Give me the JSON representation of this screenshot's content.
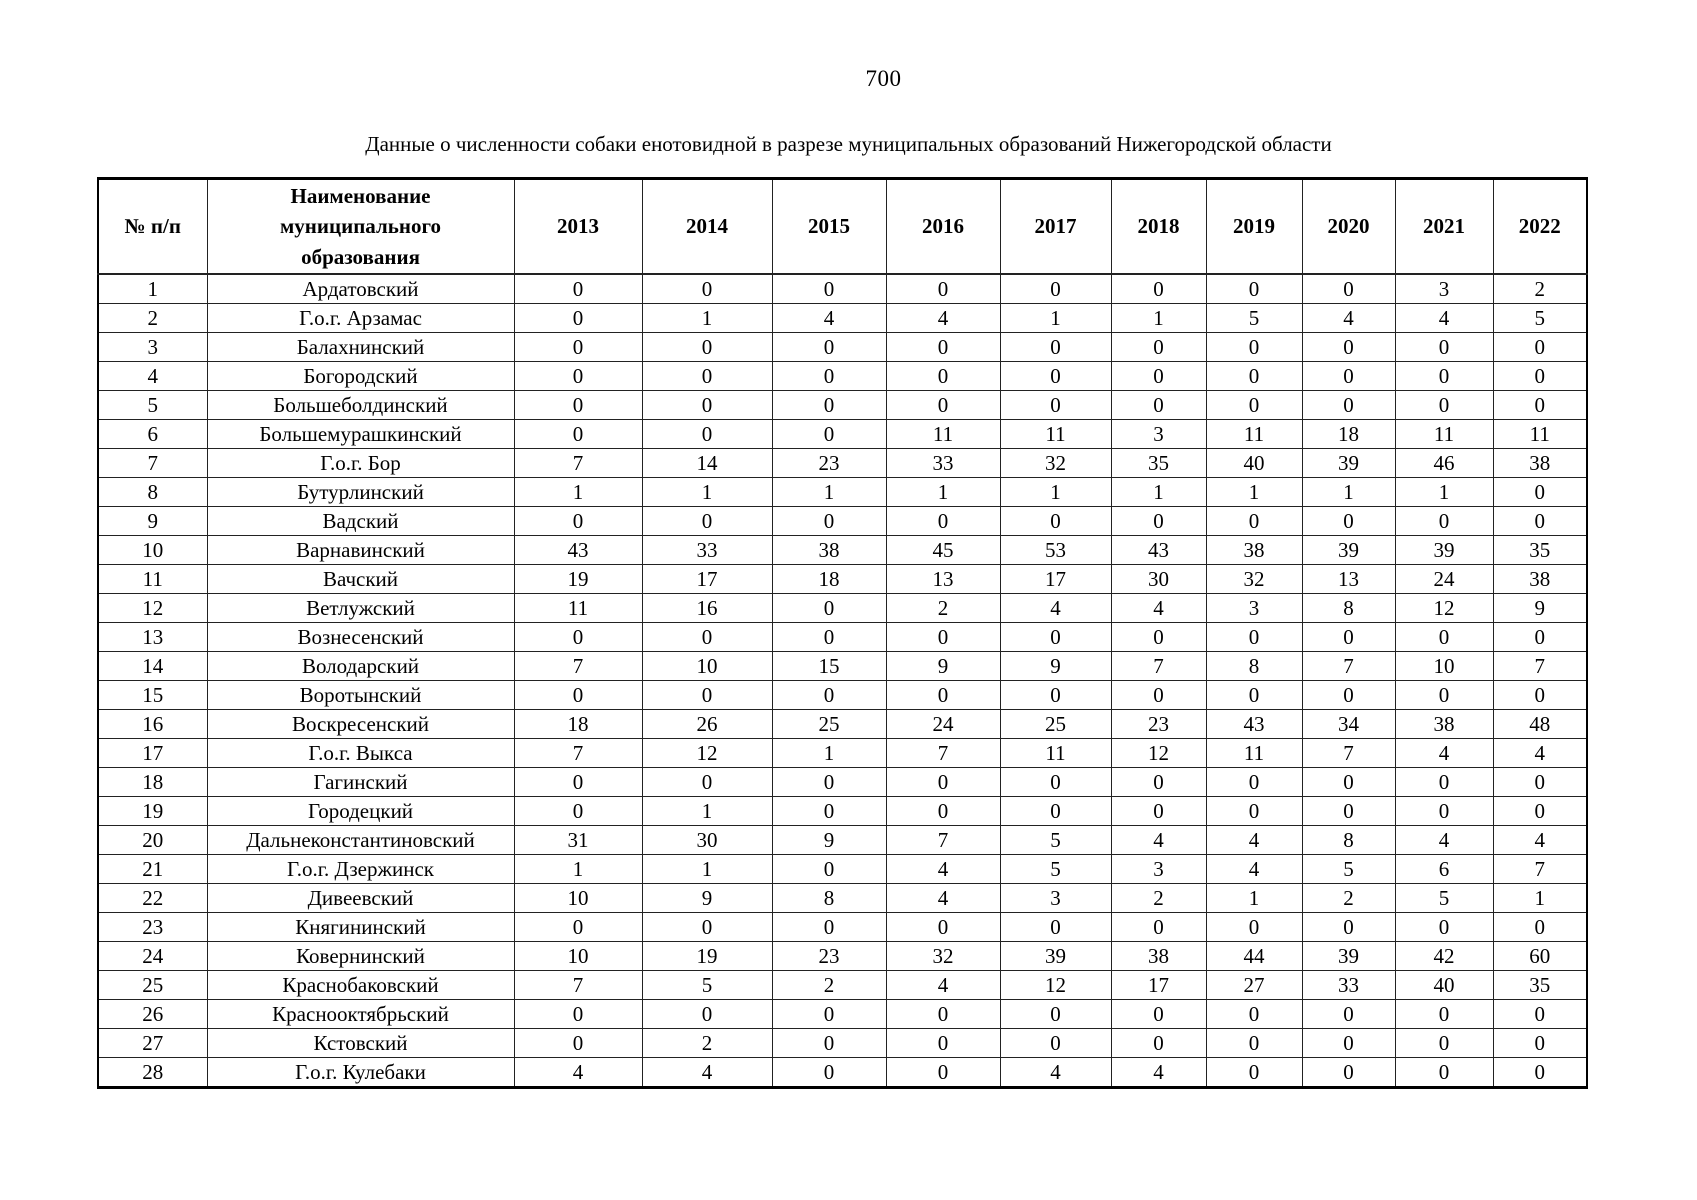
{
  "page": {
    "number": "700",
    "title": "Данные о численности собаки енотовидной в разрезе муниципальных образований Нижегородской области"
  },
  "table": {
    "header": {
      "num": "№ п/п",
      "name": "Наименование муниципального образования",
      "name_lines": [
        "Наименование",
        "муниципального",
        "образования"
      ],
      "years": [
        "2013",
        "2014",
        "2015",
        "2016",
        "2017",
        "2018",
        "2019",
        "2020",
        "2021",
        "2022"
      ]
    },
    "rows": [
      {
        "num": "1",
        "name": "Ардатовский",
        "values": [
          0,
          0,
          0,
          0,
          0,
          0,
          0,
          0,
          3,
          2
        ]
      },
      {
        "num": "2",
        "name": "Г.о.г. Арзамас",
        "values": [
          0,
          1,
          4,
          4,
          1,
          1,
          5,
          4,
          4,
          5
        ]
      },
      {
        "num": "3",
        "name": "Балахнинский",
        "values": [
          0,
          0,
          0,
          0,
          0,
          0,
          0,
          0,
          0,
          0
        ]
      },
      {
        "num": "4",
        "name": "Богородский",
        "values": [
          0,
          0,
          0,
          0,
          0,
          0,
          0,
          0,
          0,
          0
        ]
      },
      {
        "num": "5",
        "name": "Большеболдинский",
        "values": [
          0,
          0,
          0,
          0,
          0,
          0,
          0,
          0,
          0,
          0
        ]
      },
      {
        "num": "6",
        "name": "Большемурашкинский",
        "values": [
          0,
          0,
          0,
          11,
          11,
          3,
          11,
          18,
          11,
          11
        ]
      },
      {
        "num": "7",
        "name": "Г.о.г. Бор",
        "values": [
          7,
          14,
          23,
          33,
          32,
          35,
          40,
          39,
          46,
          38
        ]
      },
      {
        "num": "8",
        "name": "Бутурлинский",
        "values": [
          1,
          1,
          1,
          1,
          1,
          1,
          1,
          1,
          1,
          0
        ]
      },
      {
        "num": "9",
        "name": "Вадский",
        "values": [
          0,
          0,
          0,
          0,
          0,
          0,
          0,
          0,
          0,
          0
        ]
      },
      {
        "num": "10",
        "name": "Варнавинский",
        "values": [
          43,
          33,
          38,
          45,
          53,
          43,
          38,
          39,
          39,
          35
        ]
      },
      {
        "num": "11",
        "name": "Вачский",
        "values": [
          19,
          17,
          18,
          13,
          17,
          30,
          32,
          13,
          24,
          38
        ]
      },
      {
        "num": "12",
        "name": "Ветлужский",
        "values": [
          11,
          16,
          0,
          2,
          4,
          4,
          3,
          8,
          12,
          9
        ]
      },
      {
        "num": "13",
        "name": "Вознесенский",
        "values": [
          0,
          0,
          0,
          0,
          0,
          0,
          0,
          0,
          0,
          0
        ]
      },
      {
        "num": "14",
        "name": "Володарский",
        "values": [
          7,
          10,
          15,
          9,
          9,
          7,
          8,
          7,
          10,
          7
        ]
      },
      {
        "num": "15",
        "name": "Воротынский",
        "values": [
          0,
          0,
          0,
          0,
          0,
          0,
          0,
          0,
          0,
          0
        ]
      },
      {
        "num": "16",
        "name": "Воскресенский",
        "values": [
          18,
          26,
          25,
          24,
          25,
          23,
          43,
          34,
          38,
          48
        ]
      },
      {
        "num": "17",
        "name": "Г.о.г. Выкса",
        "values": [
          7,
          12,
          1,
          7,
          11,
          12,
          11,
          7,
          4,
          4
        ]
      },
      {
        "num": "18",
        "name": "Гагинский",
        "values": [
          0,
          0,
          0,
          0,
          0,
          0,
          0,
          0,
          0,
          0
        ]
      },
      {
        "num": "19",
        "name": "Городецкий",
        "values": [
          0,
          1,
          0,
          0,
          0,
          0,
          0,
          0,
          0,
          0
        ]
      },
      {
        "num": "20",
        "name": "Дальнеконстантиновский",
        "values": [
          31,
          30,
          9,
          7,
          5,
          4,
          4,
          8,
          4,
          4
        ]
      },
      {
        "num": "21",
        "name": "Г.о.г. Дзержинск",
        "values": [
          1,
          1,
          0,
          4,
          5,
          3,
          4,
          5,
          6,
          7
        ]
      },
      {
        "num": "22",
        "name": "Дивеевский",
        "values": [
          10,
          9,
          8,
          4,
          3,
          2,
          1,
          2,
          5,
          1
        ]
      },
      {
        "num": "23",
        "name": "Княгининский",
        "values": [
          0,
          0,
          0,
          0,
          0,
          0,
          0,
          0,
          0,
          0
        ]
      },
      {
        "num": "24",
        "name": "Ковернинский",
        "values": [
          10,
          19,
          23,
          32,
          39,
          38,
          44,
          39,
          42,
          60
        ]
      },
      {
        "num": "25",
        "name": "Краснобаковский",
        "values": [
          7,
          5,
          2,
          4,
          12,
          17,
          27,
          33,
          40,
          35
        ]
      },
      {
        "num": "26",
        "name": "Красноoктябрьский",
        "values": [
          0,
          0,
          0,
          0,
          0,
          0,
          0,
          0,
          0,
          0
        ]
      },
      {
        "num": "27",
        "name": "Кстовский",
        "values": [
          0,
          2,
          0,
          0,
          0,
          0,
          0,
          0,
          0,
          0
        ]
      },
      {
        "num": "28",
        "name": "Г.о.г. Кулебаки",
        "values": [
          4,
          4,
          0,
          0,
          4,
          4,
          0,
          0,
          0,
          0
        ]
      }
    ]
  }
}
